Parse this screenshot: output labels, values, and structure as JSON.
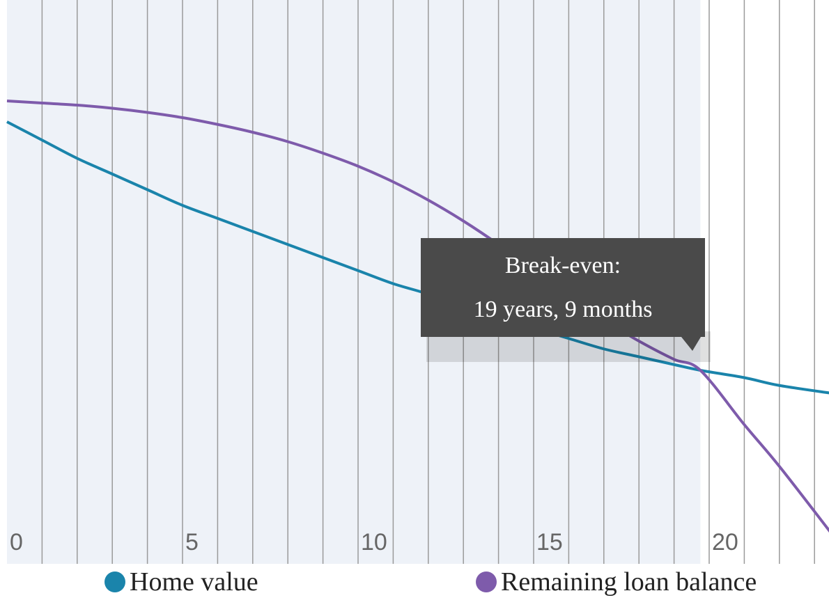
{
  "chart_data": {
    "type": "line",
    "x_ticks": [
      "0",
      "5",
      "10",
      "15",
      "20"
    ],
    "xlim": [
      0,
      23.5
    ],
    "ylim": [
      0,
      1
    ],
    "grid": true,
    "legend_placement": "bottom",
    "series": [
      {
        "name": "Home value",
        "color": "#1a84ab",
        "x": [
          0,
          1,
          2,
          3,
          4,
          5,
          6,
          7,
          8,
          9,
          10,
          11,
          12,
          13,
          14,
          15,
          16,
          17,
          18,
          19,
          19.75,
          21,
          22,
          23.5
        ],
        "y": [
          0.82,
          0.785,
          0.75,
          0.72,
          0.69,
          0.66,
          0.635,
          0.61,
          0.585,
          0.56,
          0.535,
          0.51,
          0.49,
          0.465,
          0.445,
          0.425,
          0.405,
          0.385,
          0.37,
          0.355,
          0.344,
          0.33,
          0.315,
          0.3
        ]
      },
      {
        "name": "Remaining loan balance",
        "color": "#7e5bab",
        "x": [
          0,
          1,
          2,
          3,
          4,
          5,
          6,
          7,
          8,
          9,
          10,
          11,
          12,
          13,
          14,
          15,
          16,
          17,
          18,
          19,
          19.75,
          21,
          22,
          23.5
        ],
        "y": [
          0.86,
          0.856,
          0.852,
          0.846,
          0.838,
          0.828,
          0.815,
          0.8,
          0.782,
          0.76,
          0.735,
          0.705,
          0.67,
          0.63,
          0.585,
          0.535,
          0.48,
          0.44,
          0.4,
          0.365,
          0.344,
          0.24,
          0.16,
          0.03
        ]
      }
    ],
    "annotations": [
      {
        "label": "Break-even:",
        "detail": "19 years, 9 months",
        "x": 19.75
      }
    ]
  }
}
